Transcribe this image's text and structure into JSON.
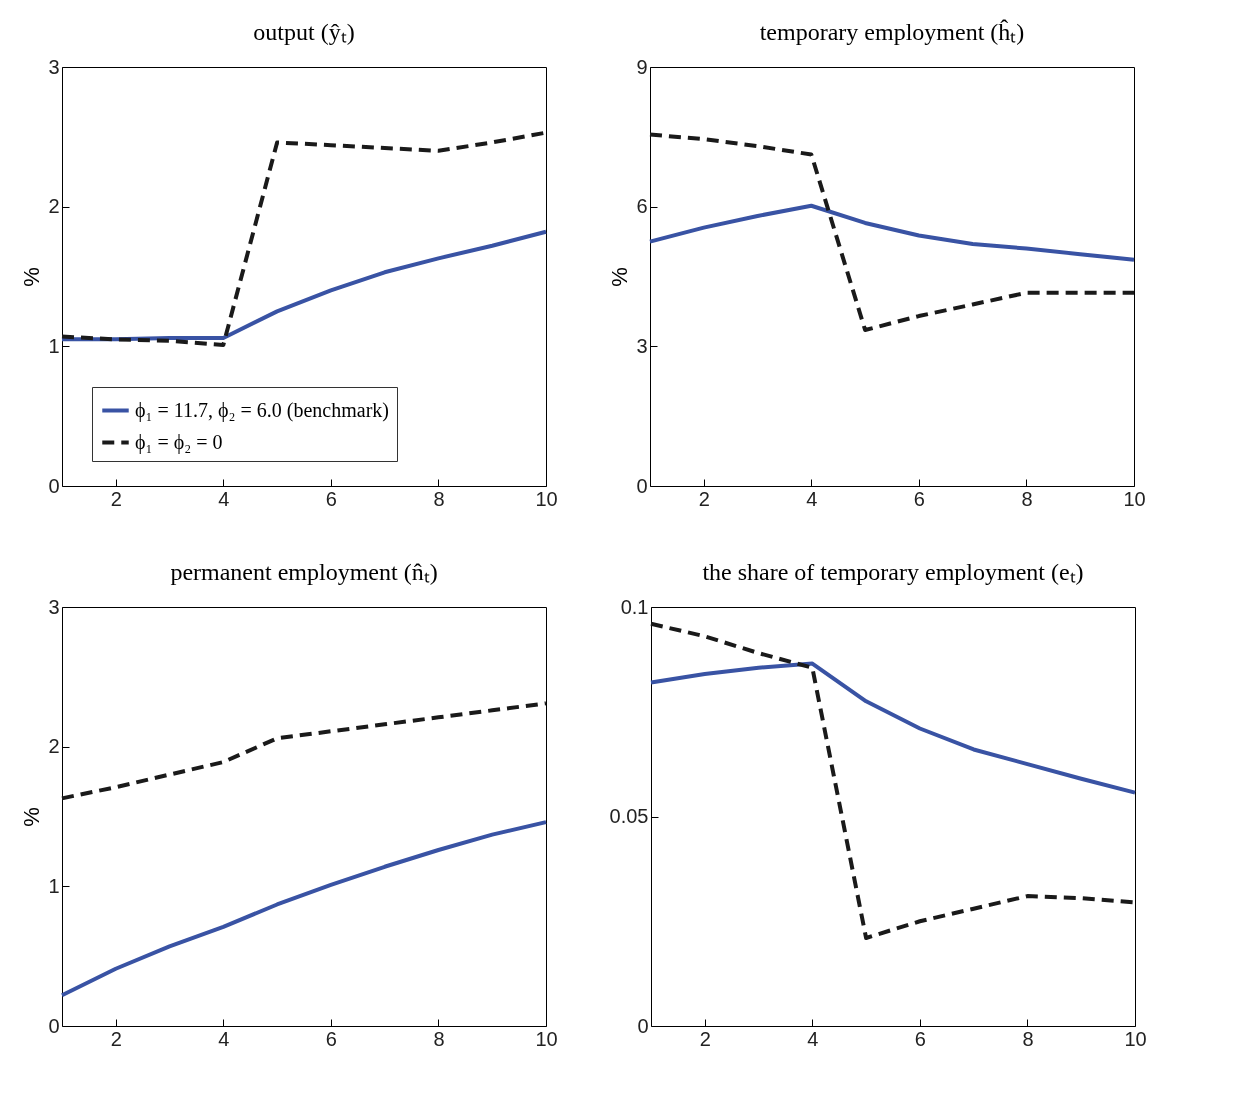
{
  "chart_data": [
    {
      "type": "line",
      "title": "output (ŷₜ)",
      "ylabel": "%",
      "x": [
        1,
        2,
        3,
        4,
        5,
        6,
        7,
        8,
        9,
        10
      ],
      "xlim": [
        1,
        10
      ],
      "xticks": [
        2,
        4,
        6,
        8,
        10
      ],
      "ylim": [
        0,
        3
      ],
      "yticks": [
        0,
        1,
        2,
        3
      ],
      "grid": false,
      "legend": "bottom left",
      "series": [
        {
          "name": "ϕ₁ = 11.7, ϕ₂ = 6.0 (benchmark)",
          "color": "#3953a4",
          "line_style": "solid",
          "values": [
            1.05,
            1.05,
            1.06,
            1.06,
            1.25,
            1.4,
            1.53,
            1.63,
            1.72,
            1.82
          ]
        },
        {
          "name": "ϕ₁ = ϕ₂ = 0",
          "color": "#1a1a1a",
          "line_style": "dashed",
          "values": [
            1.07,
            1.05,
            1.04,
            1.01,
            2.46,
            2.44,
            2.42,
            2.4,
            2.46,
            2.53
          ]
        }
      ]
    },
    {
      "type": "line",
      "title": "temporary employment (ĥₜ)",
      "ylabel": "%",
      "x": [
        1,
        2,
        3,
        4,
        5,
        6,
        7,
        8,
        9,
        10
      ],
      "xlim": [
        1,
        10
      ],
      "xticks": [
        2,
        4,
        6,
        8,
        10
      ],
      "ylim": [
        0,
        9
      ],
      "yticks": [
        0,
        3,
        6,
        9
      ],
      "grid": false,
      "legend": false,
      "series": [
        {
          "color": "#3953a4",
          "line_style": "solid",
          "values": [
            5.25,
            5.55,
            5.8,
            6.02,
            5.65,
            5.38,
            5.2,
            5.1,
            4.98,
            4.86
          ]
        },
        {
          "color": "#1a1a1a",
          "line_style": "dashed",
          "values": [
            7.55,
            7.45,
            7.3,
            7.12,
            3.35,
            3.65,
            3.9,
            4.15,
            4.15,
            4.15
          ]
        }
      ]
    },
    {
      "type": "line",
      "title": "permanent employment (n̂ₜ)",
      "ylabel": "%",
      "x": [
        1,
        2,
        3,
        4,
        5,
        6,
        7,
        8,
        9,
        10
      ],
      "xlim": [
        1,
        10
      ],
      "xticks": [
        2,
        4,
        6,
        8,
        10
      ],
      "ylim": [
        0,
        3
      ],
      "yticks": [
        0,
        1,
        2,
        3
      ],
      "grid": false,
      "legend": false,
      "series": [
        {
          "color": "#3953a4",
          "line_style": "solid",
          "values": [
            0.22,
            0.41,
            0.57,
            0.71,
            0.87,
            1.01,
            1.14,
            1.26,
            1.37,
            1.46
          ]
        },
        {
          "color": "#1a1a1a",
          "line_style": "dashed",
          "values": [
            1.63,
            1.71,
            1.8,
            1.89,
            2.06,
            2.11,
            2.16,
            2.21,
            2.26,
            2.31
          ]
        }
      ]
    },
    {
      "type": "line",
      "title": "the share of temporary employment (eₜ)",
      "x": [
        1,
        2,
        3,
        4,
        5,
        6,
        7,
        8,
        9,
        10
      ],
      "xlim": [
        1,
        10
      ],
      "xticks": [
        2,
        4,
        6,
        8,
        10
      ],
      "ylim": [
        0,
        0.1
      ],
      "yticks": [
        {
          "value": 0,
          "label": "0"
        },
        0.05,
        {
          "value": 0.1,
          "label": "0.1"
        }
      ],
      "grid": false,
      "legend": false,
      "series": [
        {
          "color": "#3953a4",
          "line_style": "solid",
          "values": [
            0.082,
            0.084,
            0.0855,
            0.0865,
            0.0775,
            0.071,
            0.066,
            0.0625,
            0.059,
            0.0557
          ]
        },
        {
          "color": "#1a1a1a",
          "line_style": "dashed",
          "values": [
            0.096,
            0.093,
            0.089,
            0.0855,
            0.021,
            0.025,
            0.028,
            0.031,
            0.0305,
            0.0295
          ]
        }
      ]
    }
  ]
}
